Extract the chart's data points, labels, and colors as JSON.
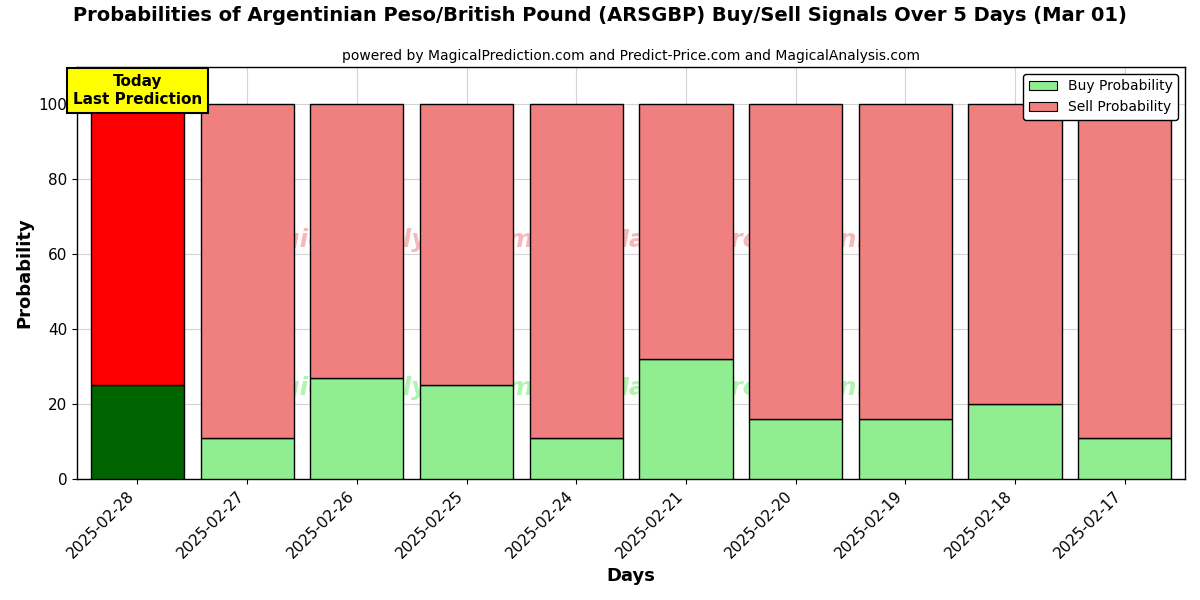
{
  "title": "Probabilities of Argentinian Peso/British Pound (ARSGBP) Buy/Sell Signals Over 5 Days (Mar 01)",
  "subtitle": "powered by MagicalPrediction.com and Predict-Price.com and MagicalAnalysis.com",
  "xlabel": "Days",
  "ylabel": "Probability",
  "categories": [
    "2025-02-28",
    "2025-02-27",
    "2025-02-26",
    "2025-02-25",
    "2025-02-24",
    "2025-02-21",
    "2025-02-20",
    "2025-02-19",
    "2025-02-18",
    "2025-02-17"
  ],
  "buy_values": [
    25,
    11,
    27,
    25,
    11,
    32,
    16,
    16,
    20,
    11
  ],
  "sell_values": [
    75,
    89,
    73,
    75,
    89,
    68,
    84,
    84,
    80,
    89
  ],
  "today_buy_color": "#006400",
  "today_sell_color": "#FF0000",
  "other_buy_color": "#90EE90",
  "other_sell_color": "#F08080",
  "today_label_bg": "#FFFF00",
  "today_label_text": "Today\nLast Prediction",
  "legend_buy_label": "Buy Probability",
  "legend_sell_label": "Sell Probability",
  "ylim": [
    0,
    110
  ],
  "yticks": [
    0,
    20,
    40,
    60,
    80,
    100
  ],
  "dashed_line_y": 110,
  "bar_width": 0.85,
  "figsize": [
    12,
    6
  ],
  "dpi": 100
}
